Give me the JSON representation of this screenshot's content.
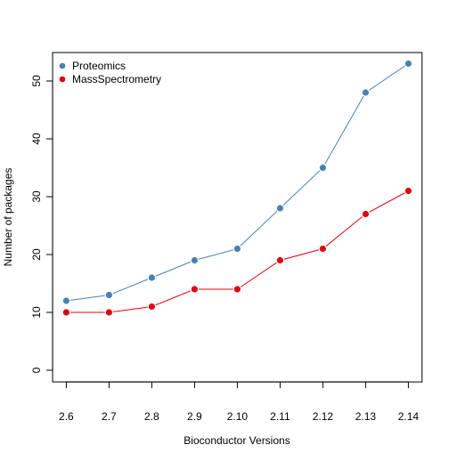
{
  "chart_data": {
    "type": "line",
    "title": "",
    "xlabel": "Bioconductor Versions",
    "ylabel": "Number of packages",
    "categories": [
      "2.6",
      "2.7",
      "2.8",
      "2.9",
      "2.10",
      "2.11",
      "2.12",
      "2.13",
      "2.14"
    ],
    "ylim": [
      0,
      55
    ],
    "yticks": [
      0,
      10,
      20,
      30,
      40,
      50
    ],
    "legend_position": "top-left",
    "grid": false,
    "series": [
      {
        "name": "Proteomics",
        "color": "#4682B4",
        "values": [
          12,
          13,
          16,
          19,
          21,
          28,
          35,
          48,
          53
        ]
      },
      {
        "name": "MassSpectrometry",
        "color": "#E8000B",
        "values": [
          10,
          10,
          11,
          14,
          14,
          19,
          21,
          27,
          31
        ]
      }
    ]
  }
}
